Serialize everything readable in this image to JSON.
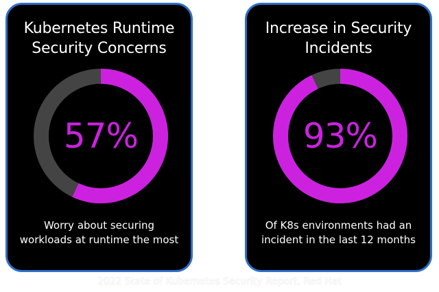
{
  "colors": {
    "accent": "#cc22e0",
    "track": "#444444",
    "card_bg": "#000000",
    "card_border": "#2f6fc8",
    "text": "#ffffff"
  },
  "chart_data": [
    {
      "type": "pie",
      "title": [
        "Kubernetes Runtime",
        "Security Concerns"
      ],
      "value_percent": 57,
      "center_label": "57%",
      "caption": [
        "Worry about securing",
        "workloads at runtime the most"
      ]
    },
    {
      "type": "pie",
      "title": [
        "Increase in Security",
        "Incidents"
      ],
      "value_percent": 93,
      "center_label": "93%",
      "caption": [
        "Of K8s environments had an",
        "incident in the last 12 months"
      ]
    }
  ],
  "source": "2022 State of Kubernetes Security Report, Red Hat"
}
